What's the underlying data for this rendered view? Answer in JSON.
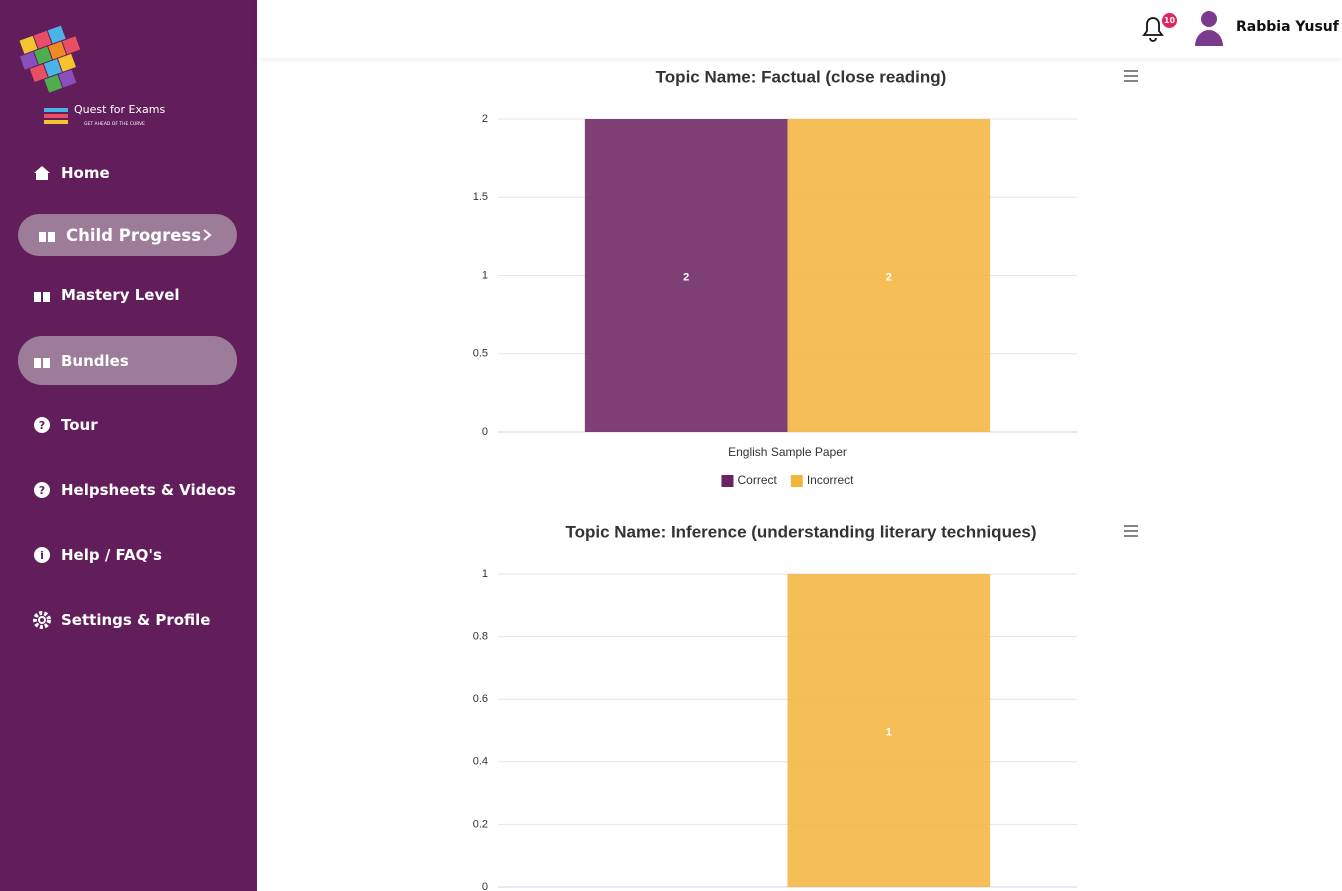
{
  "sidebar": {
    "logo_text": "Quest for Exams",
    "logo_tagline": "GET AHEAD OF THE CURVE",
    "menu": [
      "Home",
      "Child Progress",
      "Mastery Level",
      "Bundles",
      "Tour",
      "Helpsheets & Videos",
      "Help / FAQ's",
      "Settings & Profile"
    ]
  },
  "header": {
    "notification_count": 10,
    "user_name": "Rabbia Yusuf"
  },
  "chart_data": [
    {
      "type": "bar",
      "title": "Topic Name: Factual (close reading)",
      "categories": [
        "English Sample Paper"
      ],
      "series": [
        {
          "name": "Correct",
          "color": "#6b2462",
          "values": [
            2
          ]
        },
        {
          "name": "Incorrect",
          "color": "#f4b53f",
          "values": [
            2
          ]
        }
      ],
      "ylim": [
        0,
        2
      ],
      "yticks": [
        0,
        0.5,
        1,
        1.5,
        2
      ],
      "grid": true,
      "data_labels": true,
      "legend": "bottom"
    },
    {
      "type": "bar",
      "title": "Topic Name: Inference (understanding literary techniques)",
      "categories": [
        null
      ],
      "series": [
        {
          "color": "#6b2462",
          "values": [
            0
          ]
        },
        {
          "color": "#f4b53f",
          "values": [
            1
          ]
        }
      ],
      "ylim": [
        0,
        1
      ],
      "yticks": [
        0,
        0.2,
        0.4,
        0.6,
        0.8,
        1
      ],
      "grid": true,
      "data_labels": true
    }
  ]
}
